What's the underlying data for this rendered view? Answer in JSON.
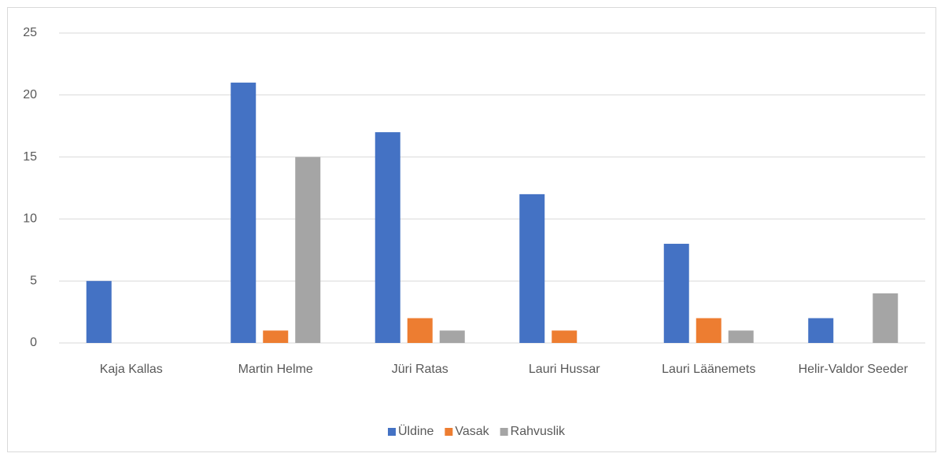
{
  "chart_data": {
    "type": "bar",
    "categories": [
      "Kaja Kallas",
      "Martin Helme",
      "Jüri Ratas",
      "Lauri Hussar",
      "Lauri Läänemets",
      "Helir-Valdor Seeder"
    ],
    "series": [
      {
        "name": "Üldine",
        "color": "#4472c4",
        "values": [
          5,
          21,
          17,
          12,
          8,
          2
        ]
      },
      {
        "name": "Vasak",
        "color": "#ed7d31",
        "values": [
          0,
          1,
          2,
          1,
          2,
          0
        ]
      },
      {
        "name": "Rahvuslik",
        "color": "#a5a5a5",
        "values": [
          0,
          15,
          1,
          0,
          1,
          4
        ]
      }
    ],
    "ylim": [
      0,
      25
    ],
    "yticks": [
      0,
      5,
      10,
      15,
      20,
      25
    ],
    "grid": true,
    "legend": "bottom"
  }
}
